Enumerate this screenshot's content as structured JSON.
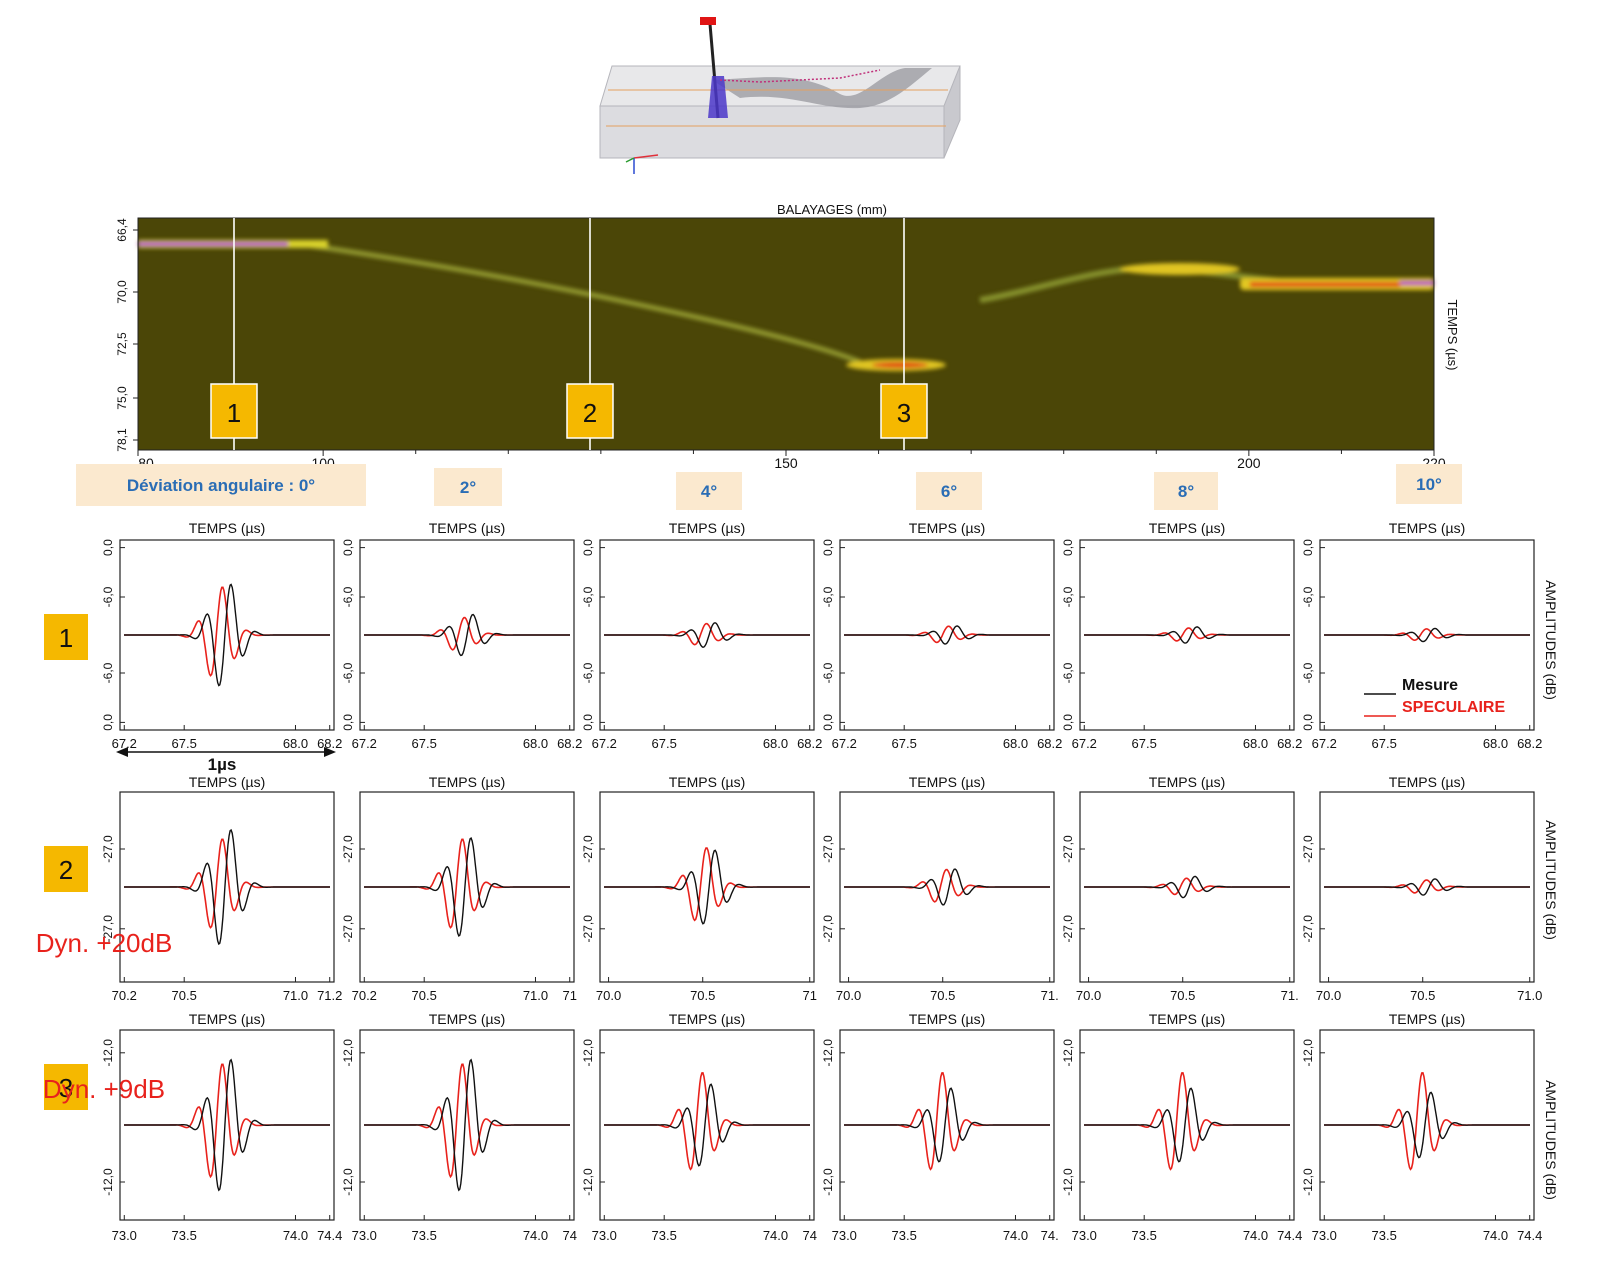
{
  "scan": {
    "title": "BALAYAGES (mm)",
    "ylabel": "TEMPS (µs)",
    "y_ticks": [
      "66,4",
      "70,0",
      "72,5",
      "75,0",
      "78,1"
    ],
    "x_ticks": [
      "80",
      "100",
      "150",
      "200",
      "220"
    ],
    "markers": [
      "1",
      "2",
      "3"
    ]
  },
  "deviation_labels": [
    "Déviation angulaire : 0°",
    "2°",
    "4°",
    "6°",
    "8°",
    "10°"
  ],
  "rows": [
    {
      "badge": "1",
      "dyn": "",
      "panel_title": "TEMPS (µs)",
      "y_ticks": [
        "0,0",
        "-6,0",
        "-6,0",
        "0,0"
      ],
      "x_tick_sets": [
        [
          "67.2",
          "67.5",
          "68.0",
          "68.2"
        ],
        [
          "67.2",
          "67.5",
          "68.0",
          "68.2"
        ],
        [
          "67.2",
          "67.5",
          "68.0",
          "68.2"
        ],
        [
          "67.2",
          "67.5",
          "68.0",
          "68.2"
        ],
        [
          "67.2",
          "67.5",
          "68.0",
          "68.2"
        ],
        [
          "67.2",
          "67.5",
          "68.0",
          "68.2"
        ]
      ],
      "amplitudes": [
        {
          "mesure": 0.62,
          "spec": 0.55,
          "offset": 0.0
        },
        {
          "mesure": 0.25,
          "spec": 0.2,
          "offset": 0.05
        },
        {
          "mesure": 0.15,
          "spec": 0.13,
          "offset": 0.1
        },
        {
          "mesure": 0.11,
          "spec": 0.1,
          "offset": 0.15
        },
        {
          "mesure": 0.1,
          "spec": 0.08,
          "offset": 0.15
        },
        {
          "mesure": 0.08,
          "spec": 0.07,
          "offset": 0.1
        }
      ]
    },
    {
      "badge": "2",
      "dyn": "Dyn. +20dB",
      "panel_title": "TEMPS (µs)",
      "y_ticks": [
        "-27,0",
        "-27,0"
      ],
      "x_tick_sets": [
        [
          "70.2",
          "70.5",
          "71.0",
          "71.2"
        ],
        [
          "70.2",
          "70.5",
          "71.0",
          "71"
        ],
        [
          "70.0",
          "70.5",
          "71"
        ],
        [
          "70.0",
          "70.5",
          "71."
        ],
        [
          "70.0",
          "70.5",
          "71."
        ],
        [
          "70.0",
          "70.5",
          "71.0"
        ]
      ],
      "amplitudes": [
        {
          "mesure": 0.7,
          "spec": 0.55,
          "offset": 0.0
        },
        {
          "mesure": 0.6,
          "spec": 0.55,
          "offset": 0.0
        },
        {
          "mesure": 0.45,
          "spec": 0.45,
          "offset": 0.1
        },
        {
          "mesure": 0.22,
          "spec": 0.2,
          "offset": 0.1
        },
        {
          "mesure": 0.13,
          "spec": 0.1,
          "offset": 0.1
        },
        {
          "mesure": 0.1,
          "spec": 0.08,
          "offset": 0.1
        }
      ]
    },
    {
      "badge": "3",
      "dyn": "Dyn. +9dB",
      "panel_title": "TEMPS (µs)",
      "y_ticks": [
        "-12,0",
        "-12,0"
      ],
      "x_tick_sets": [
        [
          "73.0",
          "73.5",
          "74.0",
          "74.4"
        ],
        [
          "73.0",
          "73.5",
          "74.0",
          "74"
        ],
        [
          "73.0",
          "73.5",
          "74.0",
          "74"
        ],
        [
          "73.0",
          "73.5",
          "74.0",
          "74."
        ],
        [
          "73.0",
          "73.5",
          "74.0",
          "74.4"
        ],
        [
          "73.0",
          "73.5",
          "74.0",
          "74.4"
        ]
      ],
      "amplitudes": [
        {
          "mesure": 0.8,
          "spec": 0.7,
          "offset": 0.0
        },
        {
          "mesure": 0.8,
          "spec": 0.7,
          "offset": 0.0
        },
        {
          "mesure": 0.5,
          "spec": 0.6,
          "offset": 0.0
        },
        {
          "mesure": 0.45,
          "spec": 0.6,
          "offset": 0.0
        },
        {
          "mesure": 0.45,
          "spec": 0.6,
          "offset": 0.0
        },
        {
          "mesure": 0.4,
          "spec": 0.6,
          "offset": 0.0
        }
      ]
    }
  ],
  "right_axis_label": "AMPLITUDES (dB)",
  "legend": {
    "mesure": "Mesure",
    "specular": "SPECULAIRE",
    "mesure_color": "#111111",
    "specular_color": "#e8221c"
  },
  "duration_label": "1µs",
  "chart_data": [
    {
      "type": "heatmap",
      "title": "BALAYAGES (mm)",
      "xlabel": "BALAYAGES (mm)",
      "ylabel": "TEMPS (µs)",
      "xlim": [
        80,
        220
      ],
      "ylim": [
        66.4,
        78.1
      ]
    },
    {
      "type": "line",
      "title": "TEMPS (µs)",
      "series": [
        {
          "name": "Mesure"
        },
        {
          "name": "SPECULAIRE"
        }
      ]
    }
  ]
}
